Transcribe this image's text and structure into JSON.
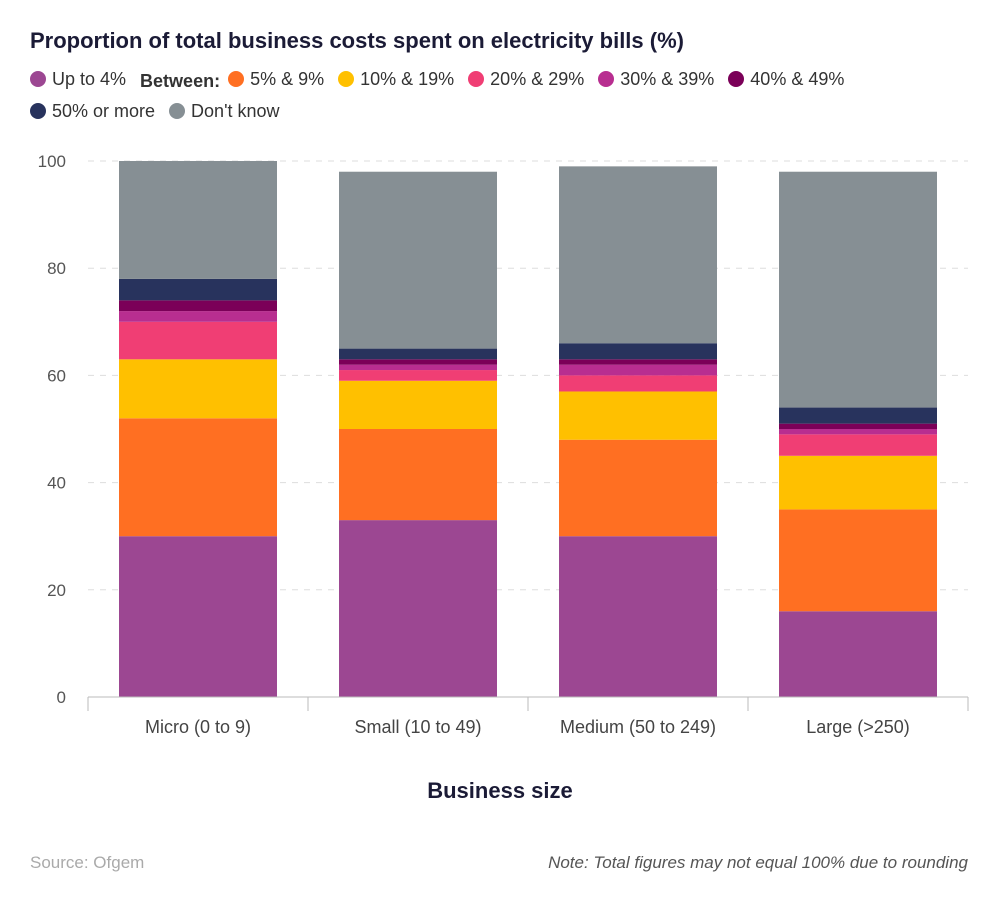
{
  "chart_data": {
    "type": "bar",
    "stacked": true,
    "title": "Proportion of total business costs spent on electricity bills (%)",
    "xlabel": "Business size",
    "ylabel": "",
    "ylim": [
      0,
      100
    ],
    "yticks": [
      0,
      20,
      40,
      60,
      80,
      100
    ],
    "grid": true,
    "legend_position": "top",
    "legend_group_label": "Between:",
    "categories": [
      "Micro (0 to 9)",
      "Small (10 to 49)",
      "Medium (50 to 249)",
      "Large (>250)"
    ],
    "series": [
      {
        "name": "Up to 4%",
        "color": "#9c4792",
        "values": [
          30,
          33,
          30,
          16
        ]
      },
      {
        "name": "5% & 9%",
        "color": "#ff6f22",
        "values": [
          22,
          17,
          18,
          19
        ]
      },
      {
        "name": "10% & 19%",
        "color": "#ffc000",
        "values": [
          11,
          9,
          9,
          10
        ]
      },
      {
        "name": "20% & 29%",
        "color": "#f03e74",
        "values": [
          7,
          2,
          3,
          4
        ]
      },
      {
        "name": "30% & 39%",
        "color": "#b82e90",
        "values": [
          2,
          1,
          2,
          1
        ]
      },
      {
        "name": "40% & 49%",
        "color": "#7b0058",
        "values": [
          2,
          1,
          1,
          1
        ]
      },
      {
        "name": "50% or more",
        "color": "#28335d",
        "values": [
          4,
          2,
          3,
          3
        ]
      },
      {
        "name": "Don't know",
        "color": "#868f94",
        "values": [
          22,
          33,
          33,
          44
        ]
      }
    ]
  },
  "footer": {
    "source": "Source: Ofgem",
    "note": "Note: Total figures may not equal 100% due to rounding"
  }
}
